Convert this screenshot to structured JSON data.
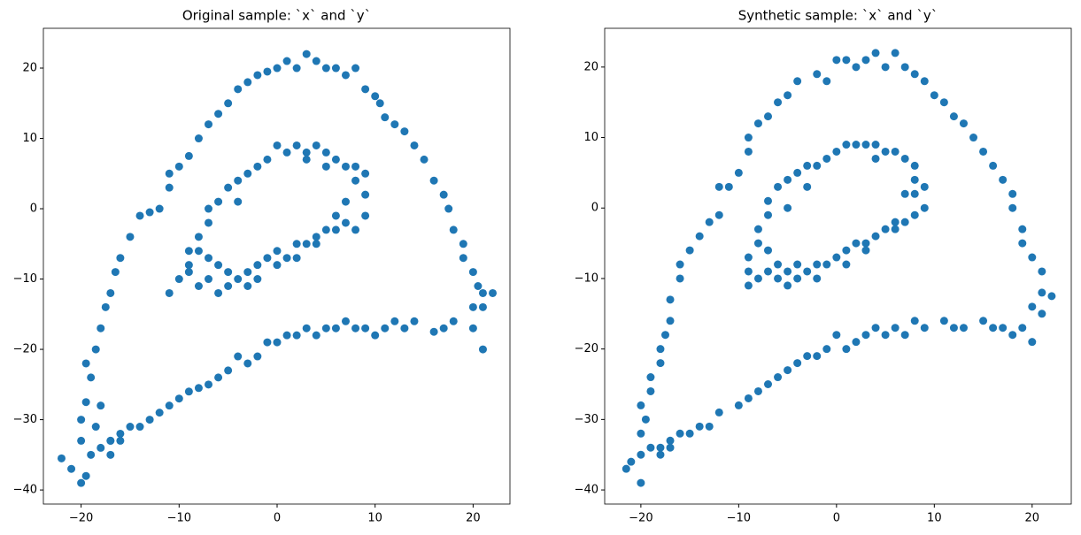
{
  "chart_data": [
    {
      "type": "scatter",
      "title": "Original sample: `x` and `y`",
      "color": "#1f77b4",
      "xlim": [
        -23.85,
        23.76
      ],
      "ylim": [
        -42,
        25.66
      ],
      "xticks": [
        {
          "value": -20,
          "label": "−20"
        },
        {
          "value": -10,
          "label": "−10"
        },
        0,
        10,
        20
      ],
      "yticks": [
        {
          "value": -40,
          "label": "−40"
        },
        {
          "value": -30,
          "label": "−30"
        },
        {
          "value": -20,
          "label": "−20"
        },
        {
          "value": -10,
          "label": "−10"
        },
        0,
        10,
        20
      ],
      "x": [
        -22,
        -21,
        -20,
        -19.5,
        -20,
        -19,
        -18,
        -17,
        -18.5,
        -20,
        -19.5,
        -18,
        -19,
        -19.5,
        -18.5,
        -18,
        -17.5,
        -17,
        -16.5,
        -16,
        -15,
        -14,
        -13,
        -12,
        -11,
        -11,
        -10,
        -9,
        -8,
        -7,
        -6,
        -5,
        -4,
        -3,
        -2,
        -1,
        0,
        1,
        2,
        3,
        4,
        5,
        6,
        7,
        8,
        9,
        10,
        10.5,
        11,
        12,
        13,
        14,
        15,
        16,
        17,
        17.5,
        18,
        19,
        19,
        20,
        20.5,
        21,
        22,
        21,
        20,
        21,
        20,
        18,
        17,
        16,
        14,
        13,
        12,
        11,
        10,
        9,
        8,
        7,
        6,
        5,
        4,
        3,
        2,
        1,
        0,
        -1,
        -2,
        -3,
        -4,
        -5,
        -6,
        -7,
        -8,
        -9,
        -10,
        -11,
        -12,
        -13,
        -14,
        -15,
        -16,
        -17,
        -17,
        -16,
        -11,
        -10,
        -9,
        -8,
        -7,
        -6,
        -5,
        -4,
        -3,
        -2,
        -1,
        0,
        1,
        2,
        3,
        4,
        5,
        6,
        7,
        8,
        9,
        9,
        8,
        9,
        7,
        6,
        5,
        4,
        3,
        2,
        1,
        0,
        -1,
        -2,
        -3,
        -4,
        -5,
        -6,
        -7,
        -7,
        -8,
        -8,
        -9,
        -7,
        -6,
        -5,
        -3,
        -2,
        0,
        2,
        4,
        6,
        7,
        8,
        5,
        3,
        -4,
        -9
      ],
      "y": [
        -35.5,
        -37,
        -39,
        -38,
        -33,
        -35,
        -34,
        -33,
        -31,
        -30,
        -27.5,
        -28,
        -24,
        -22,
        -20,
        -17,
        -14,
        -12,
        -9,
        -7,
        -4,
        -1,
        -0.5,
        0,
        3,
        5,
        6,
        7.5,
        10,
        12,
        13.5,
        15,
        17,
        18,
        19,
        19.5,
        20,
        21,
        20,
        22,
        21,
        20,
        20,
        19,
        20,
        17,
        16,
        15,
        13,
        12,
        11,
        9,
        7,
        4,
        2,
        0,
        -3,
        -5,
        -7,
        -9,
        -11,
        -12,
        -12,
        -14,
        -14,
        -20,
        -17,
        -16,
        -17,
        -17.5,
        -16,
        -17,
        -16,
        -17,
        -18,
        -17,
        -17,
        -16,
        -17,
        -17,
        -18,
        -17,
        -18,
        -18,
        -19,
        -19,
        -21,
        -22,
        -21,
        -23,
        -24,
        -25,
        -25.5,
        -26,
        -27,
        -28,
        -29,
        -30,
        -31,
        -31,
        -32,
        -33,
        -35,
        -33,
        -12,
        -10,
        -9,
        -11,
        -10,
        -12,
        -9,
        -10,
        -9,
        -8,
        -7,
        -6,
        -7,
        -5,
        -5,
        -4,
        -3,
        -3,
        -2,
        -3,
        -1,
        2,
        4,
        5,
        6,
        7,
        8,
        9,
        8,
        9,
        8,
        9,
        7,
        6,
        5,
        4,
        3,
        1,
        0,
        -2,
        -4,
        -6,
        -8,
        -7,
        -8,
        -11,
        -11,
        -10,
        -8,
        -7,
        -5,
        -1,
        1,
        6,
        6,
        7,
        1,
        -6
      ]
    },
    {
      "type": "scatter",
      "title": "Synthetic sample: `x` and `y`",
      "color": "#1f77b4",
      "xlim": [
        -23.7,
        24.0
      ],
      "ylim": [
        -42,
        25.5
      ],
      "xticks": [
        {
          "value": -20,
          "label": "−20"
        },
        {
          "value": -10,
          "label": "−10"
        },
        0,
        10,
        20
      ],
      "yticks": [
        {
          "value": -40,
          "label": "−40"
        },
        {
          "value": -30,
          "label": "−30"
        },
        {
          "value": -20,
          "label": "−20"
        },
        {
          "value": -10,
          "label": "−10"
        },
        0,
        10,
        20
      ],
      "x": [
        -21.5,
        -21,
        -20,
        -20,
        -19,
        -18,
        -17,
        -20,
        -19.5,
        -20,
        -19,
        -19,
        -18,
        -18,
        -17.5,
        -17,
        -17,
        -16,
        -16,
        -15,
        -14,
        -13,
        -12,
        -11,
        -12,
        -10,
        -9,
        -9,
        -8,
        -7,
        -6,
        -5,
        -4,
        -2,
        -1,
        0,
        1,
        2,
        3,
        4,
        5,
        6,
        7,
        8,
        9,
        10,
        11,
        12,
        13,
        14,
        15,
        16,
        17,
        18,
        18,
        19,
        19,
        20,
        21,
        21,
        22,
        21,
        20,
        20,
        19,
        18,
        17,
        16,
        15,
        13,
        12,
        11,
        9,
        8,
        7,
        6,
        5,
        4,
        3,
        2,
        1,
        0,
        -1,
        -2,
        -3,
        -4,
        -5,
        -6,
        -7,
        -8,
        -9,
        -10,
        -12,
        -13,
        -14,
        -15,
        -16,
        -17,
        -18,
        -9,
        -8,
        -7,
        -6,
        -5,
        -4,
        -3,
        -2,
        -1,
        0,
        1,
        2,
        3,
        4,
        5,
        6,
        7,
        8,
        9,
        9,
        8,
        8,
        7,
        6,
        5,
        4,
        3,
        2,
        1,
        0,
        -1,
        -2,
        -3,
        -4,
        -5,
        -6,
        -7,
        -7,
        -8,
        -8,
        -9,
        -9,
        -7,
        -6,
        -5,
        -4,
        -2,
        1,
        3,
        6,
        7,
        8,
        4,
        -3,
        -5
      ],
      "y": [
        -37,
        -36,
        -39,
        -35,
        -34,
        -35,
        -34,
        -32,
        -30,
        -28,
        -26,
        -24,
        -22,
        -20,
        -18,
        -16,
        -13,
        -10,
        -8,
        -6,
        -4,
        -2,
        -1,
        3,
        3,
        5,
        8,
        10,
        12,
        13,
        15,
        16,
        18,
        19,
        18,
        21,
        21,
        20,
        21,
        22,
        20,
        22,
        20,
        19,
        18,
        16,
        15,
        13,
        12,
        10,
        8,
        6,
        4,
        2,
        0,
        -3,
        -5,
        -7,
        -9,
        -12,
        -12.5,
        -15,
        -14,
        -19,
        -17,
        -18,
        -17,
        -17,
        -16,
        -17,
        -17,
        -16,
        -17,
        -16,
        -18,
        -17,
        -18,
        -17,
        -18,
        -19,
        -20,
        -18,
        -20,
        -21,
        -21,
        -22,
        -23,
        -24,
        -25,
        -26,
        -27,
        -28,
        -29,
        -31,
        -31,
        -32,
        -32,
        -33,
        -34,
        -11,
        -10,
        -9,
        -10,
        -9,
        -10,
        -9,
        -8,
        -8,
        -7,
        -6,
        -5,
        -5,
        -4,
        -3,
        -3,
        -2,
        -1,
        0,
        3,
        4,
        6,
        7,
        8,
        8,
        9,
        9,
        9,
        9,
        8,
        7,
        6,
        6,
        5,
        4,
        3,
        1,
        -1,
        -3,
        -5,
        -7,
        -9,
        -6,
        -8,
        -11,
        -8,
        -10,
        -8,
        -6,
        -2,
        2,
        2,
        7,
        3,
        0
      ]
    }
  ]
}
